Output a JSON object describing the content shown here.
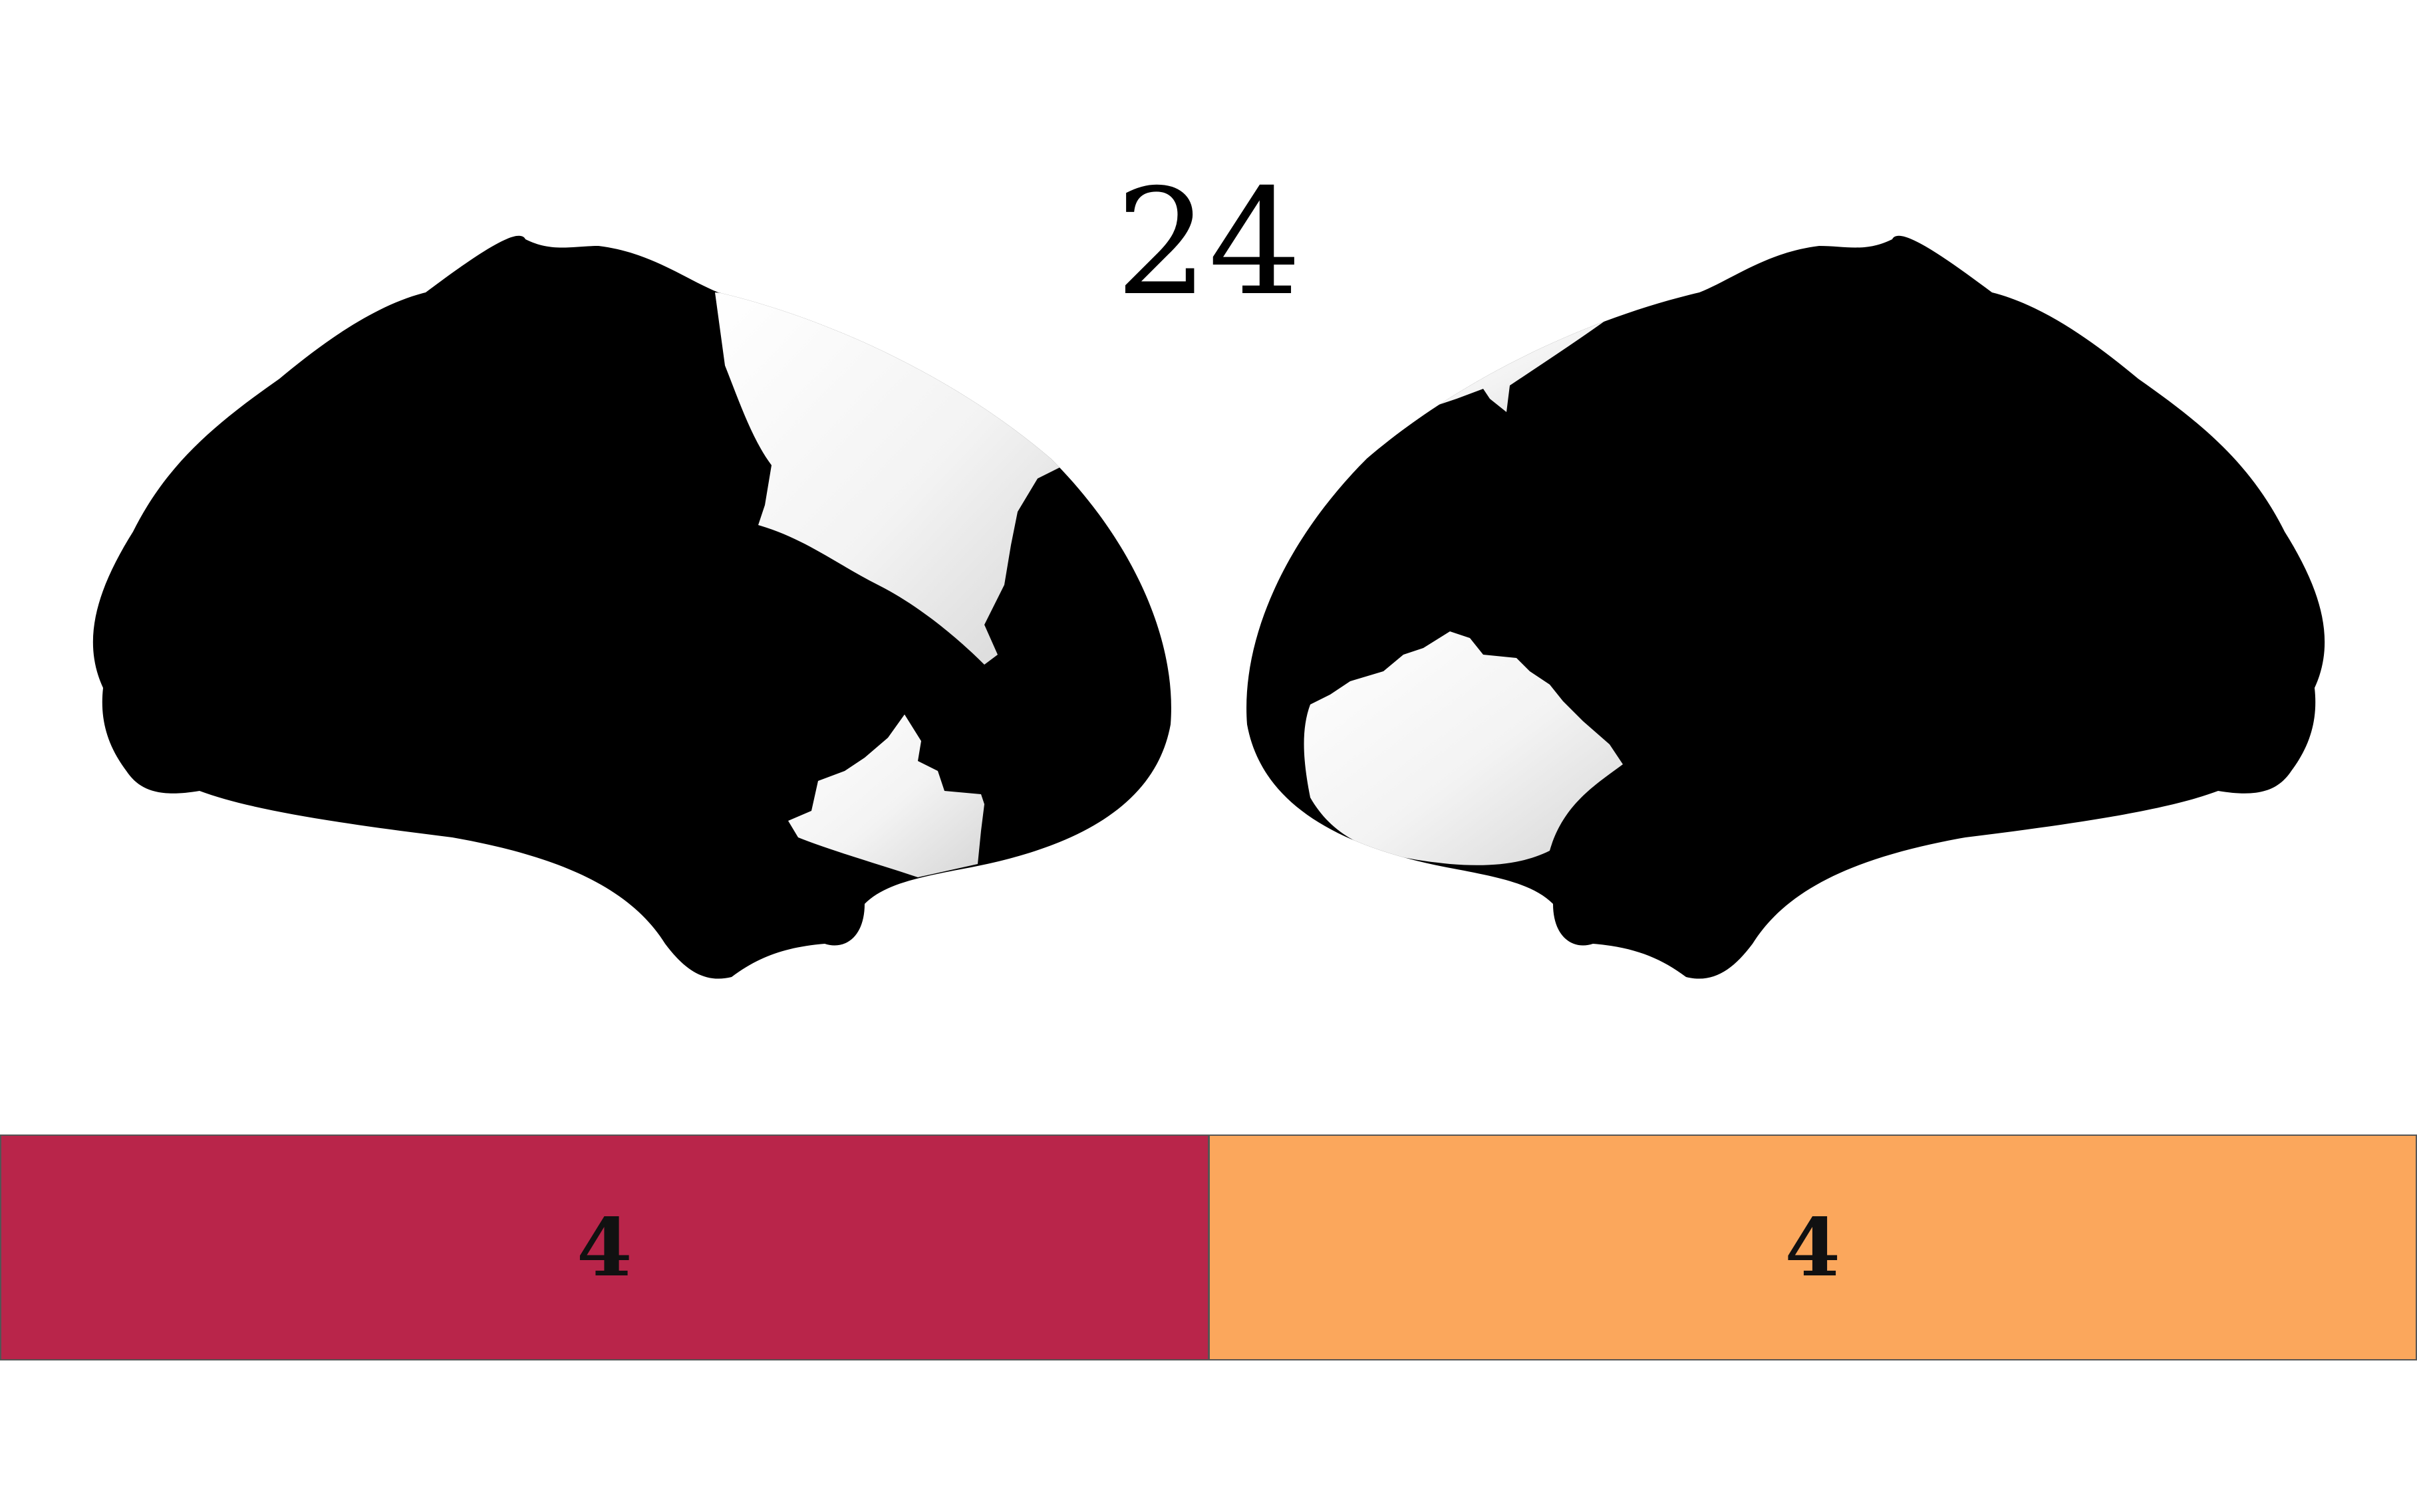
{
  "figure": {
    "title": "24"
  },
  "hemispheres": [
    {
      "name": "left-hemisphere-lateral",
      "highlighted_regions": [
        "superior-frontal-strip",
        "inferior-temporal-patch"
      ]
    },
    {
      "name": "right-hemisphere-lateral",
      "highlighted_regions": [
        "superior-strip",
        "insular-temporal-patch"
      ]
    }
  ],
  "colors": {
    "background": "#ffffff",
    "cortex": "#000000",
    "highlight": "#f2f2f2",
    "legend_left": "#b9254a",
    "legend_right": "#fba75c"
  },
  "legend": {
    "cells": [
      {
        "label": "4",
        "color": "#b9254a"
      },
      {
        "label": "4",
        "color": "#fba75c"
      }
    ]
  }
}
